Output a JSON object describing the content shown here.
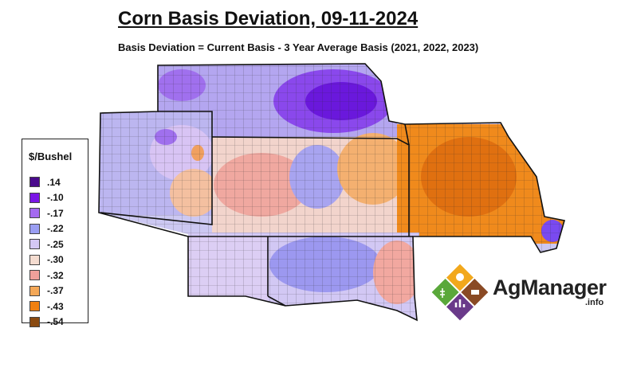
{
  "title": "Corn Basis Deviation, 09-11-2024",
  "subtitle": "Basis Deviation = Current Basis - 3 Year Average Basis (2021, 2022, 2023)",
  "legend": {
    "title": "$/Bushel",
    "items": [
      {
        "label": ".14",
        "color": "#4a0a8c"
      },
      {
        "label": "-.10",
        "color": "#7a16e6"
      },
      {
        "label": "-.17",
        "color": "#a46af0"
      },
      {
        "label": "-.22",
        "color": "#9a9ef2"
      },
      {
        "label": "-.25",
        "color": "#d4c8f4"
      },
      {
        "label": "-.30",
        "color": "#f4dcd0"
      },
      {
        "label": "-.32",
        "color": "#f0a09a"
      },
      {
        "label": "-.37",
        "color": "#f4a858"
      },
      {
        "label": "-.43",
        "color": "#f08010"
      },
      {
        "label": "-.54",
        "color": "#8a4a10"
      }
    ]
  },
  "logo": {
    "name": "AgManager",
    "suffix": ".info"
  }
}
